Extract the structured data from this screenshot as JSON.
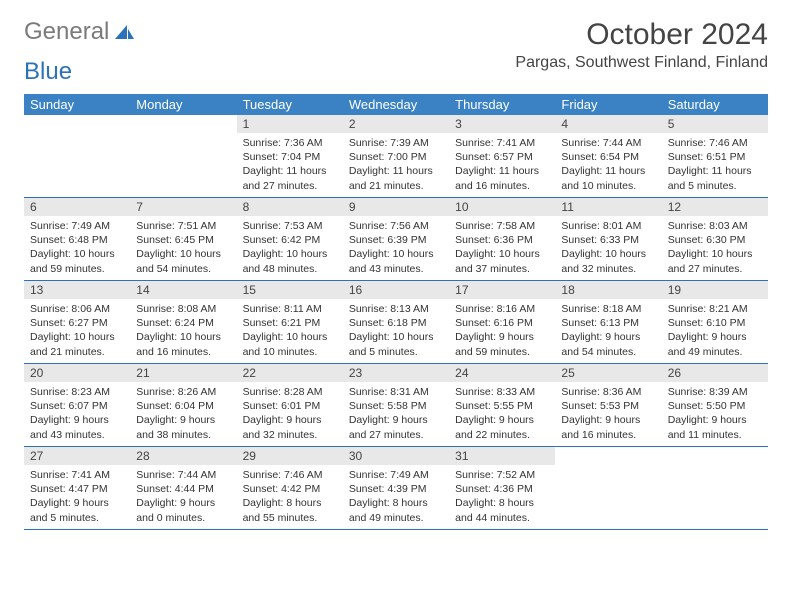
{
  "logo": {
    "word1": "General",
    "word2": "Blue"
  },
  "title": "October 2024",
  "location": "Pargas, Southwest Finland, Finland",
  "colors": {
    "header_bg": "#3a82c4",
    "border": "#2c72b8",
    "daynum_bg": "#e8e8e8",
    "text": "#333333",
    "logo_gray": "#7a7a7a",
    "logo_blue": "#2c72b8"
  },
  "weekdays": [
    "Sunday",
    "Monday",
    "Tuesday",
    "Wednesday",
    "Thursday",
    "Friday",
    "Saturday"
  ],
  "weeks": [
    [
      {
        "empty": true
      },
      {
        "empty": true
      },
      {
        "n": "1",
        "sr": "7:36 AM",
        "ss": "7:04 PM",
        "dl": "11 hours and 27 minutes."
      },
      {
        "n": "2",
        "sr": "7:39 AM",
        "ss": "7:00 PM",
        "dl": "11 hours and 21 minutes."
      },
      {
        "n": "3",
        "sr": "7:41 AM",
        "ss": "6:57 PM",
        "dl": "11 hours and 16 minutes."
      },
      {
        "n": "4",
        "sr": "7:44 AM",
        "ss": "6:54 PM",
        "dl": "11 hours and 10 minutes."
      },
      {
        "n": "5",
        "sr": "7:46 AM",
        "ss": "6:51 PM",
        "dl": "11 hours and 5 minutes."
      }
    ],
    [
      {
        "n": "6",
        "sr": "7:49 AM",
        "ss": "6:48 PM",
        "dl": "10 hours and 59 minutes."
      },
      {
        "n": "7",
        "sr": "7:51 AM",
        "ss": "6:45 PM",
        "dl": "10 hours and 54 minutes."
      },
      {
        "n": "8",
        "sr": "7:53 AM",
        "ss": "6:42 PM",
        "dl": "10 hours and 48 minutes."
      },
      {
        "n": "9",
        "sr": "7:56 AM",
        "ss": "6:39 PM",
        "dl": "10 hours and 43 minutes."
      },
      {
        "n": "10",
        "sr": "7:58 AM",
        "ss": "6:36 PM",
        "dl": "10 hours and 37 minutes."
      },
      {
        "n": "11",
        "sr": "8:01 AM",
        "ss": "6:33 PM",
        "dl": "10 hours and 32 minutes."
      },
      {
        "n": "12",
        "sr": "8:03 AM",
        "ss": "6:30 PM",
        "dl": "10 hours and 27 minutes."
      }
    ],
    [
      {
        "n": "13",
        "sr": "8:06 AM",
        "ss": "6:27 PM",
        "dl": "10 hours and 21 minutes."
      },
      {
        "n": "14",
        "sr": "8:08 AM",
        "ss": "6:24 PM",
        "dl": "10 hours and 16 minutes."
      },
      {
        "n": "15",
        "sr": "8:11 AM",
        "ss": "6:21 PM",
        "dl": "10 hours and 10 minutes."
      },
      {
        "n": "16",
        "sr": "8:13 AM",
        "ss": "6:18 PM",
        "dl": "10 hours and 5 minutes."
      },
      {
        "n": "17",
        "sr": "8:16 AM",
        "ss": "6:16 PM",
        "dl": "9 hours and 59 minutes."
      },
      {
        "n": "18",
        "sr": "8:18 AM",
        "ss": "6:13 PM",
        "dl": "9 hours and 54 minutes."
      },
      {
        "n": "19",
        "sr": "8:21 AM",
        "ss": "6:10 PM",
        "dl": "9 hours and 49 minutes."
      }
    ],
    [
      {
        "n": "20",
        "sr": "8:23 AM",
        "ss": "6:07 PM",
        "dl": "9 hours and 43 minutes."
      },
      {
        "n": "21",
        "sr": "8:26 AM",
        "ss": "6:04 PM",
        "dl": "9 hours and 38 minutes."
      },
      {
        "n": "22",
        "sr": "8:28 AM",
        "ss": "6:01 PM",
        "dl": "9 hours and 32 minutes."
      },
      {
        "n": "23",
        "sr": "8:31 AM",
        "ss": "5:58 PM",
        "dl": "9 hours and 27 minutes."
      },
      {
        "n": "24",
        "sr": "8:33 AM",
        "ss": "5:55 PM",
        "dl": "9 hours and 22 minutes."
      },
      {
        "n": "25",
        "sr": "8:36 AM",
        "ss": "5:53 PM",
        "dl": "9 hours and 16 minutes."
      },
      {
        "n": "26",
        "sr": "8:39 AM",
        "ss": "5:50 PM",
        "dl": "9 hours and 11 minutes."
      }
    ],
    [
      {
        "n": "27",
        "sr": "7:41 AM",
        "ss": "4:47 PM",
        "dl": "9 hours and 5 minutes."
      },
      {
        "n": "28",
        "sr": "7:44 AM",
        "ss": "4:44 PM",
        "dl": "9 hours and 0 minutes."
      },
      {
        "n": "29",
        "sr": "7:46 AM",
        "ss": "4:42 PM",
        "dl": "8 hours and 55 minutes."
      },
      {
        "n": "30",
        "sr": "7:49 AM",
        "ss": "4:39 PM",
        "dl": "8 hours and 49 minutes."
      },
      {
        "n": "31",
        "sr": "7:52 AM",
        "ss": "4:36 PM",
        "dl": "8 hours and 44 minutes."
      },
      {
        "empty": true
      },
      {
        "empty": true
      }
    ]
  ],
  "labels": {
    "sunrise": "Sunrise: ",
    "sunset": "Sunset: ",
    "daylight": "Daylight: "
  }
}
